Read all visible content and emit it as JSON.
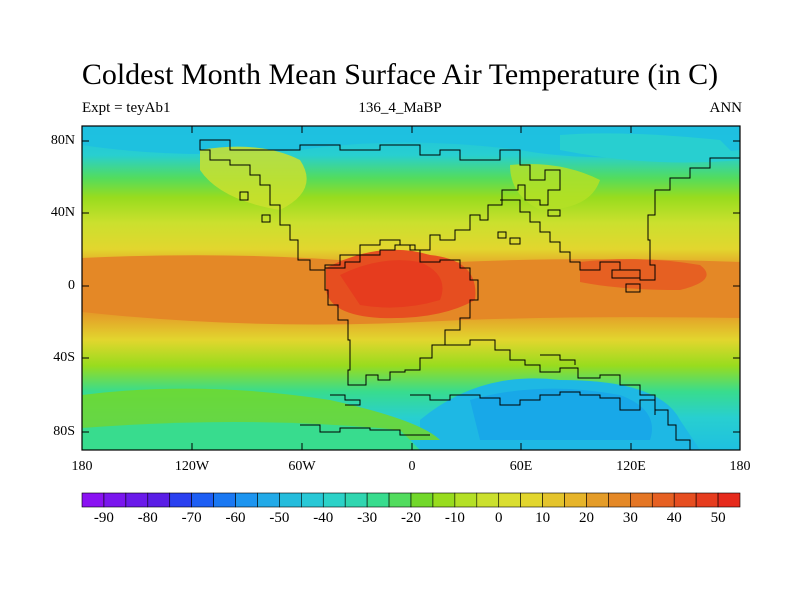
{
  "title": "Coldest Month Mean Surface Air Temperature (in C)",
  "subtitle_left": "Expt = teyAb1",
  "subtitle_center": "136_4_MaBP",
  "subtitle_right": "ANN",
  "lat_ticks": [
    "80N",
    "40N",
    "0",
    "40S",
    "80S"
  ],
  "lon_ticks": [
    "180",
    "120W",
    "60W",
    "0",
    "60E",
    "120E",
    "180"
  ],
  "colorbar": {
    "labels": [
      "-90",
      "-80",
      "-70",
      "-60",
      "-50",
      "-40",
      "-30",
      "-20",
      "-10",
      "0",
      "10",
      "20",
      "30",
      "40",
      "50"
    ],
    "colors": [
      "#8a12f2",
      "#7a16ee",
      "#6a1aea",
      "#5a1ee6",
      "#2a40f0",
      "#1d5ef4",
      "#1a78f2",
      "#1d95f0",
      "#22aae8",
      "#24bcdc",
      "#28c8d6",
      "#2cd2c8",
      "#30d6b0",
      "#38dc8e",
      "#52dc5e",
      "#72d82a",
      "#98dc1e",
      "#b4e026",
      "#cbe02e",
      "#dade30",
      "#e2d62e",
      "#e4c42c",
      "#e6b42a",
      "#e49c28",
      "#e48826",
      "#e47624",
      "#e66022",
      "#e64e20",
      "#e63c1e",
      "#e62a1c"
    ]
  },
  "map": {
    "lon_range": [
      -180,
      180
    ],
    "lat_range": [
      -90,
      90
    ],
    "colors": {
      "polar_cold": "#1ec0e0",
      "subpolar": "#28cfd0",
      "cool": "#38dc8e",
      "mild": "#98dc1e",
      "temperate": "#cbe02e",
      "warm": "#e2d62e",
      "hot": "#e49c28",
      "tropical": "#e47624",
      "hottest": "#e64e20",
      "coastline": "#000000"
    }
  }
}
